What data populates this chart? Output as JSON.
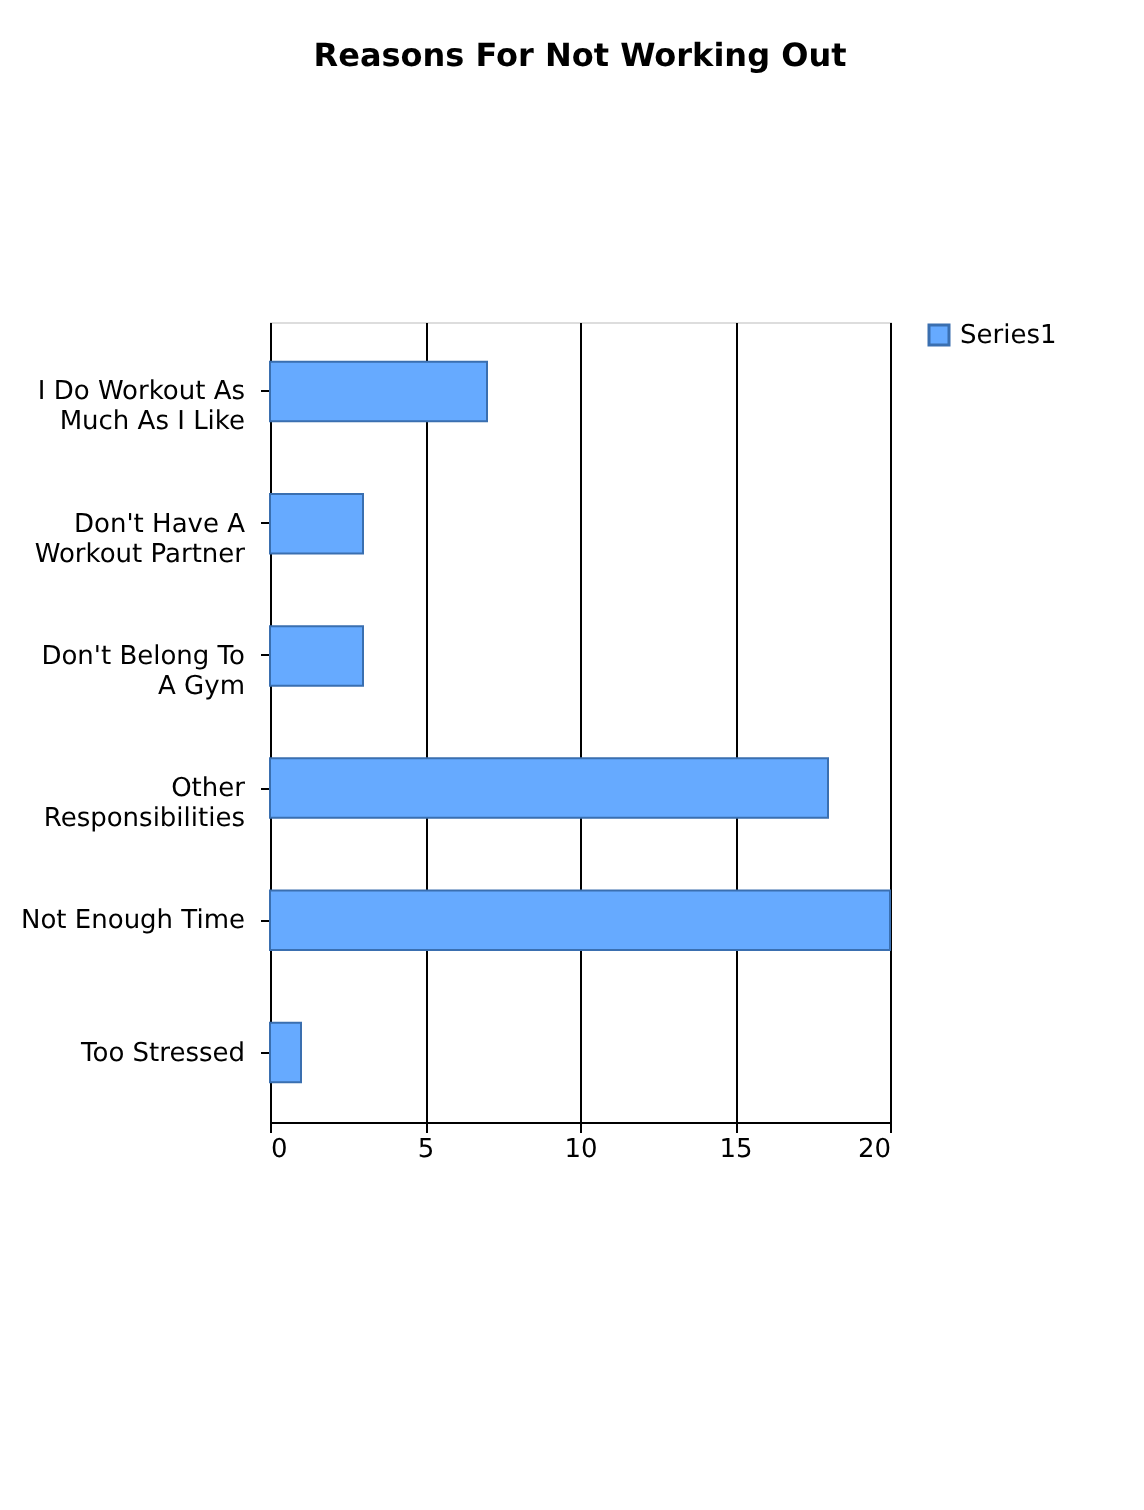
{
  "chart_data": {
    "type": "bar",
    "orientation": "horizontal",
    "title": "Reasons For Not Working Out",
    "categories": [
      "I Do Workout As Much As I Like",
      "Don't Have A Workout Partner",
      "Don't Belong To A Gym",
      "Other Responsibilities",
      "Not Enough Time",
      "Too Stressed"
    ],
    "series": [
      {
        "name": "Series1",
        "color": "#66aaff",
        "values": [
          7,
          3,
          3,
          18,
          20,
          1
        ]
      }
    ],
    "xlim": [
      0,
      20
    ],
    "xticks": [
      0,
      5,
      10,
      15,
      20
    ],
    "grid": "x",
    "legend": "right"
  }
}
